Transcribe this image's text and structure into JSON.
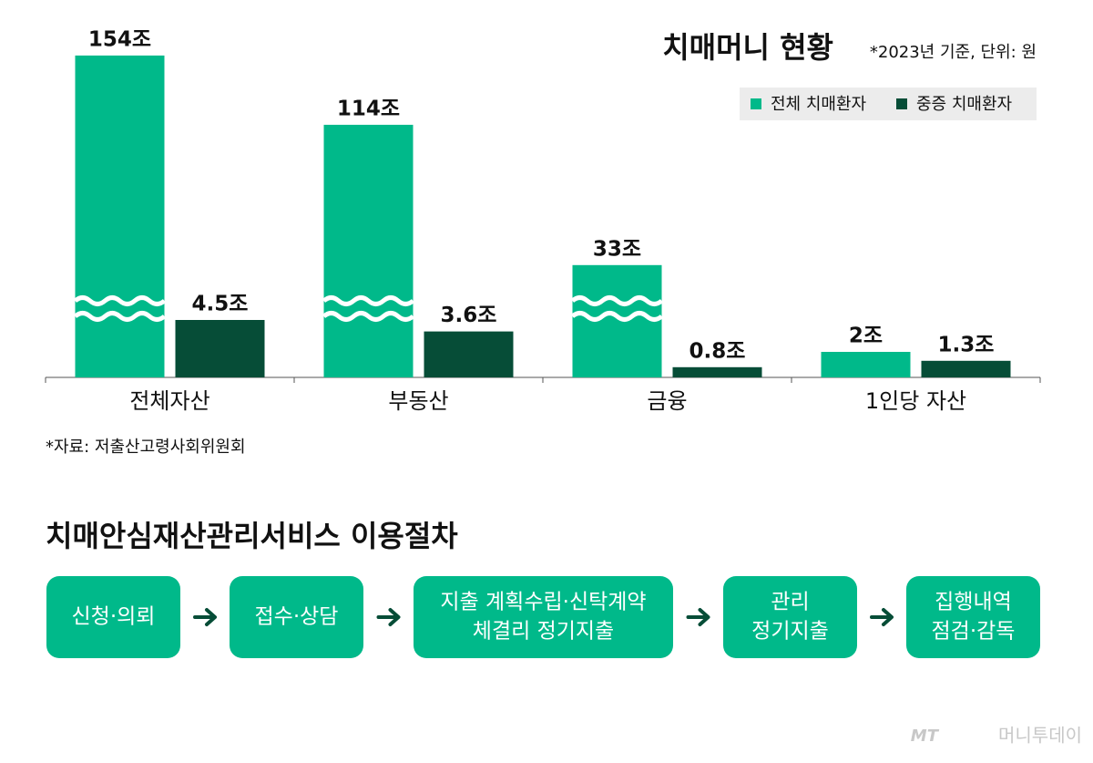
{
  "chart_data": {
    "type": "bar",
    "title": "치매머니 현황",
    "subtitle": "*2023년 기준, 단위: 원",
    "categories": [
      "전체자산",
      "부동산",
      "금융",
      "1인당 자산"
    ],
    "series": [
      {
        "name": "전체 치매환자",
        "color": "#00b98a",
        "values": [
          154,
          114,
          33,
          2
        ],
        "value_labels": [
          "154조",
          "114조",
          "33조",
          "2조"
        ]
      },
      {
        "name": "중증 치매환자",
        "color": "#064d37",
        "values": [
          4.5,
          3.6,
          0.8,
          1.3
        ],
        "value_labels": [
          "4.5조",
          "3.6조",
          "0.8조",
          "1.3조"
        ]
      }
    ],
    "legend": "top-right"
  },
  "source": "*자료: 저출산고령사회위원회",
  "process": {
    "title": "치매안심재산관리서비스 이용절차",
    "steps": [
      {
        "lines": [
          "신청·의뢰"
        ]
      },
      {
        "lines": [
          "접수·상담"
        ]
      },
      {
        "lines": [
          "지출 계획수립·신탁계약",
          "체결리 정기지출"
        ]
      },
      {
        "lines": [
          "관리",
          "정기지출"
        ]
      },
      {
        "lines": [
          "집행내역",
          "점검·감독"
        ]
      }
    ]
  },
  "watermark": {
    "logo": "MT",
    "name": "머니투데이"
  }
}
